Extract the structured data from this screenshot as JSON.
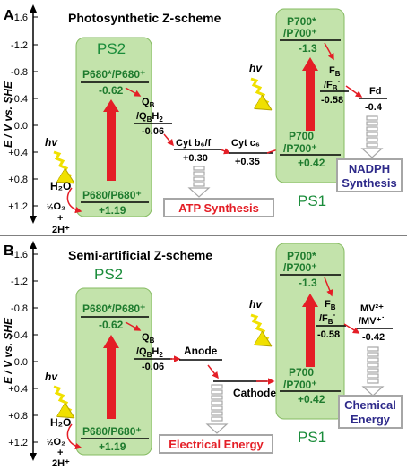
{
  "colors": {
    "ps_fill": "#c3e3ab",
    "ps_stroke": "#86bb62",
    "ps_label": "#1a8c3a",
    "red": "#e41e26",
    "lightning": "#f0e000",
    "label_green": "#1e7b2e",
    "box_red": "#e41e26",
    "box_blue": "#2e2a8a",
    "box_border": "#a6a6a6"
  },
  "axis": {
    "label": "E / V vs. SHE",
    "ticks": [
      "-1.6",
      "-1.2",
      "-0.8",
      "-0.4",
      "0.0",
      "+0.4",
      "+0.8",
      "+1.2"
    ]
  },
  "panel_a": {
    "letter": "A",
    "title": "Photosynthetic Z-scheme",
    "ps2_label": "PS2",
    "ps1_label": "PS1",
    "p680_excited": "P680*/P680⁺",
    "p680_excited_value": "-0.62",
    "p680_ground": "P680/P680⁺",
    "p680_ground_value": "+1.19",
    "qb_line1": "Q",
    "qb_sub1": "B",
    "qb_line2": "/Q",
    "qb_sub2": "B",
    "qb_tail": "H",
    "qb_sub3": "2",
    "qb_value": "-0.06",
    "cytb6f": "Cyt b₆/f",
    "cytb6f_value": "+0.30",
    "cytc6": "Cyt c₆",
    "cytc6_value": "+0.35",
    "p700_excited_1": "P700*",
    "p700_excited_2": "/P700⁺",
    "p700_excited_value": "-1.3",
    "p700_ground_1": "P700",
    "p700_ground_2": "/P700⁺",
    "p700_ground_value": "+0.42",
    "fb_1": "F",
    "fb_sub": "B",
    "fb_2": "/F",
    "fb_sub2": "B",
    "fb_sup": "-",
    "fb_value": "-0.58",
    "fd": "Fd",
    "fd_value": "-0.4",
    "hv": "hv",
    "h2o": "H₂O",
    "o2_half": "½",
    "o2": "O₂",
    "plus": "+",
    "h_plus": "2H⁺",
    "box_atp": "ATP Synthesis",
    "box_nadph_1": "NADPH",
    "box_nadph_2": "Synthesis"
  },
  "panel_b": {
    "letter": "B",
    "title": "Semi-artificial Z-scheme",
    "ps2_label": "PS2",
    "ps1_label": "PS1",
    "p680_excited": "P680*/P680⁺",
    "p680_excited_value": "-0.62",
    "p680_ground": "P680/P680⁺",
    "p680_ground_value": "+1.19",
    "qb_line1": "Q",
    "qb_sub1": "B",
    "qb_line2": "/Q",
    "qb_sub2": "B",
    "qb_tail": "H",
    "qb_sub3": "2",
    "qb_value": "-0.06",
    "anode": "Anode",
    "cathode": "Cathode",
    "p700_excited_1": "P700*",
    "p700_excited_2": "/P700⁺",
    "p700_excited_value": "-1.3",
    "p700_ground_1": "P700",
    "p700_ground_2": "/P700⁺",
    "p700_ground_value": "+0.42",
    "fb_1": "F",
    "fb_sub": "B",
    "fb_2": "/F",
    "fb_sub2": "B",
    "fb_sup": "-",
    "fb_value": "-0.58",
    "mv_1": "MV²⁺",
    "mv_2": "/MV⁺˙",
    "mv_value": "-0.42",
    "hv": "hv",
    "h2o": "H₂O",
    "o2_half": "½",
    "o2": "O₂",
    "plus": "+",
    "h_plus": "2H⁺",
    "box_electrical": "Electrical Energy",
    "box_chemical_1": "Chemical",
    "box_chemical_2": "Energy"
  }
}
